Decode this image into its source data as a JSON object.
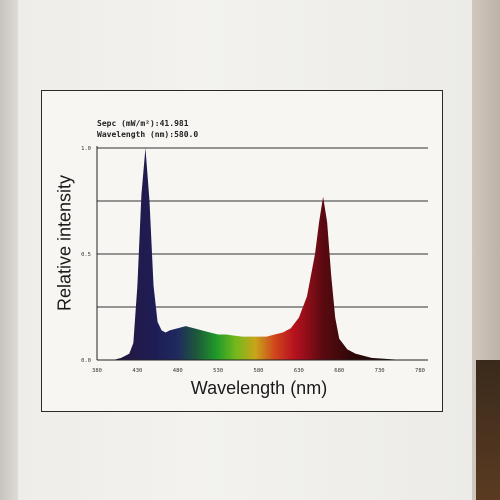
{
  "readout": {
    "spec": "Sepc (mW/m²):41.981",
    "wavelength": "Wavelength (nm):580.0"
  },
  "chart_data": {
    "type": "area",
    "title": "",
    "xlabel": "Wavelength (nm)",
    "ylabel": "Relative intensity",
    "xlim": [
      380,
      780
    ],
    "ylim": [
      0.0,
      1.0
    ],
    "x_ticks": [
      "380",
      "430",
      "480",
      "530",
      "580",
      "630",
      "680",
      "730",
      "780"
    ],
    "y_ticks": [
      "0.0",
      "0.5",
      "1.0"
    ],
    "grid": "horizontal",
    "series": [
      {
        "x": [
          380,
          400,
          410,
          420,
          425,
          430,
          435,
          440,
          445,
          450,
          455,
          460,
          465,
          470,
          480,
          490,
          500,
          510,
          520,
          530,
          540,
          550,
          560,
          570,
          580,
          590,
          600,
          610,
          620,
          630,
          640,
          650,
          655,
          660,
          665,
          670,
          675,
          680,
          690,
          700,
          720,
          740,
          760,
          780
        ],
        "values": [
          0.0,
          0.0,
          0.01,
          0.03,
          0.08,
          0.35,
          0.78,
          1.0,
          0.75,
          0.35,
          0.18,
          0.14,
          0.13,
          0.14,
          0.15,
          0.16,
          0.15,
          0.14,
          0.13,
          0.12,
          0.12,
          0.115,
          0.11,
          0.11,
          0.11,
          0.11,
          0.12,
          0.13,
          0.15,
          0.2,
          0.3,
          0.5,
          0.65,
          0.77,
          0.65,
          0.4,
          0.2,
          0.1,
          0.05,
          0.03,
          0.01,
          0.005,
          0.0,
          0.0
        ]
      }
    ]
  }
}
